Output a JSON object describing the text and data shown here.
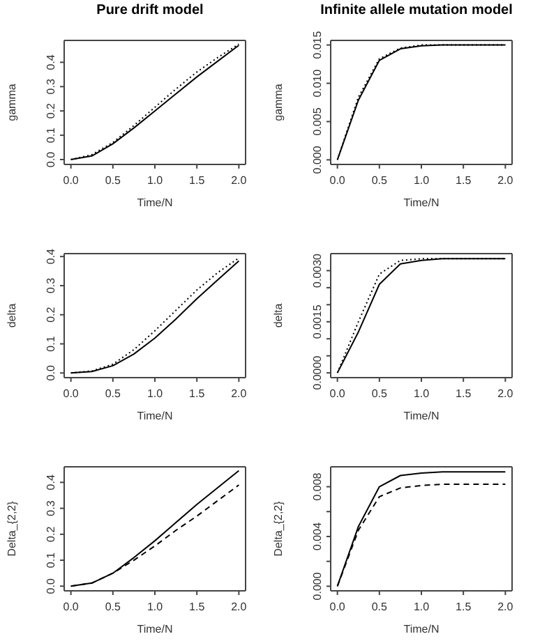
{
  "chart_data": [
    {
      "type": "line",
      "title": "Pure drift model",
      "xlabel": "Time/N",
      "ylabel": "gamma",
      "x": [
        0,
        0.25,
        0.5,
        0.75,
        1,
        1.25,
        1.5,
        1.75,
        2
      ],
      "xlim": [
        -0.08,
        2.08
      ],
      "xticks": [
        {
          "value": 0,
          "label": "0.0"
        },
        {
          "value": 0.5,
          "label": "0.5"
        },
        {
          "value": 1,
          "label": "1.0"
        },
        {
          "value": 1.5,
          "label": "1.5"
        },
        {
          "value": 2,
          "label": "2.0"
        }
      ],
      "ylim": [
        -0.02,
        0.49
      ],
      "yticks": [
        {
          "value": 0,
          "label": "0.0"
        },
        {
          "value": 0.1,
          "label": "0.1"
        },
        {
          "value": 0.2,
          "label": "0.2"
        },
        {
          "value": 0.3,
          "label": "0.3"
        },
        {
          "value": 0.4,
          "label": "0.4"
        }
      ],
      "grid": false,
      "legend": false,
      "marker": "none",
      "series": [
        {
          "color": "#000000",
          "line_style": "solid",
          "values": [
            0,
            0.015,
            0.065,
            0.13,
            0.2,
            0.27,
            0.34,
            0.405,
            0.47
          ]
        },
        {
          "color": "#000000",
          "line_style": "dotted",
          "values": [
            0,
            0.02,
            0.07,
            0.14,
            0.215,
            0.29,
            0.36,
            0.42,
            0.475
          ]
        }
      ]
    },
    {
      "type": "line",
      "title": "Infinite allele mutation model",
      "xlabel": "Time/N",
      "ylabel": "gamma",
      "x": [
        0,
        0.25,
        0.5,
        0.75,
        1,
        1.25,
        1.5,
        1.75,
        2
      ],
      "xlim": [
        -0.08,
        2.08
      ],
      "xticks": [
        {
          "value": 0,
          "label": "0.0"
        },
        {
          "value": 0.5,
          "label": "0.5"
        },
        {
          "value": 1,
          "label": "1.0"
        },
        {
          "value": 1.5,
          "label": "1.5"
        },
        {
          "value": 2,
          "label": "2.0"
        }
      ],
      "ylim": [
        -0.0006,
        0.0156
      ],
      "yticks": [
        {
          "value": 0,
          "label": "0.000"
        },
        {
          "value": 0.005,
          "label": "0.005"
        },
        {
          "value": 0.01,
          "label": "0.010"
        },
        {
          "value": 0.015,
          "label": "0.015"
        }
      ],
      "grid": false,
      "legend": false,
      "marker": "none",
      "series": [
        {
          "color": "#000000",
          "line_style": "solid",
          "values": [
            0,
            0.0078,
            0.013,
            0.0145,
            0.0149,
            0.015,
            0.015,
            0.015,
            0.015
          ]
        },
        {
          "color": "#000000",
          "line_style": "dotted",
          "values": [
            0,
            0.0082,
            0.0132,
            0.0146,
            0.015,
            0.015,
            0.015,
            0.015,
            0.015
          ]
        }
      ]
    },
    {
      "type": "line",
      "xlabel": "Time/N",
      "ylabel": "delta",
      "x": [
        0,
        0.25,
        0.5,
        0.75,
        1,
        1.25,
        1.5,
        1.75,
        2
      ],
      "xlim": [
        -0.08,
        2.08
      ],
      "xticks": [
        {
          "value": 0,
          "label": "0.0"
        },
        {
          "value": 0.5,
          "label": "0.5"
        },
        {
          "value": 1,
          "label": "1.0"
        },
        {
          "value": 1.5,
          "label": "1.5"
        },
        {
          "value": 2,
          "label": "2.0"
        }
      ],
      "ylim": [
        -0.016,
        0.41
      ],
      "yticks": [
        {
          "value": 0,
          "label": "0.0"
        },
        {
          "value": 0.1,
          "label": "0.1"
        },
        {
          "value": 0.2,
          "label": "0.2"
        },
        {
          "value": 0.3,
          "label": "0.3"
        },
        {
          "value": 0.4,
          "label": "0.4"
        }
      ],
      "grid": false,
      "legend": false,
      "marker": "none",
      "series": [
        {
          "color": "#000000",
          "line_style": "solid",
          "values": [
            0,
            0.005,
            0.025,
            0.065,
            0.12,
            0.185,
            0.255,
            0.32,
            0.385
          ]
        },
        {
          "color": "#000000",
          "line_style": "dotted",
          "values": [
            0,
            0.007,
            0.03,
            0.08,
            0.145,
            0.215,
            0.285,
            0.345,
            0.395
          ]
        }
      ]
    },
    {
      "type": "line",
      "xlabel": "Time/N",
      "ylabel": "delta",
      "x": [
        0,
        0.25,
        0.5,
        0.75,
        1,
        1.25,
        1.5,
        1.75,
        2
      ],
      "xlim": [
        -0.08,
        2.08
      ],
      "xticks": [
        {
          "value": 0,
          "label": "0.0"
        },
        {
          "value": 0.5,
          "label": "0.5"
        },
        {
          "value": 1,
          "label": "1.0"
        },
        {
          "value": 1.5,
          "label": "1.5"
        },
        {
          "value": 2,
          "label": "2.0"
        }
      ],
      "ylim": [
        -0.00014,
        0.0035
      ],
      "yticks": [
        {
          "value": 0,
          "label": "0.0000"
        },
        {
          "value": 0.0005,
          "label": null
        },
        {
          "value": 0.001,
          "label": null
        },
        {
          "value": 0.0015,
          "label": "0.0015"
        },
        {
          "value": 0.002,
          "label": null
        },
        {
          "value": 0.0025,
          "label": null
        },
        {
          "value": 0.003,
          "label": "0.0030"
        }
      ],
      "grid": false,
      "legend": false,
      "marker": "none",
      "series": [
        {
          "color": "#000000",
          "line_style": "solid",
          "values": [
            0,
            0.0012,
            0.0026,
            0.0032,
            0.0033,
            0.00335,
            0.00335,
            0.00335,
            0.00335
          ]
        },
        {
          "color": "#000000",
          "line_style": "dotted",
          "values": [
            0,
            0.0015,
            0.0029,
            0.0033,
            0.00335,
            0.00335,
            0.00335,
            0.00335,
            0.00335
          ]
        }
      ]
    },
    {
      "type": "line",
      "xlabel": "Time/N",
      "ylabel": "Delta_{2,2}",
      "x": [
        0,
        0.25,
        0.5,
        0.75,
        1,
        1.25,
        1.5,
        1.75,
        2
      ],
      "xlim": [
        -0.08,
        2.08
      ],
      "xticks": [
        {
          "value": 0,
          "label": "0.0"
        },
        {
          "value": 0.5,
          "label": "0.5"
        },
        {
          "value": 1,
          "label": "1.0"
        },
        {
          "value": 1.5,
          "label": "1.5"
        },
        {
          "value": 2,
          "label": "2.0"
        }
      ],
      "ylim": [
        -0.018,
        0.46
      ],
      "yticks": [
        {
          "value": 0,
          "label": "0.0"
        },
        {
          "value": 0.1,
          "label": "0.1"
        },
        {
          "value": 0.2,
          "label": "0.2"
        },
        {
          "value": 0.3,
          "label": "0.3"
        },
        {
          "value": 0.4,
          "label": "0.4"
        }
      ],
      "grid": false,
      "legend": false,
      "marker": "none",
      "series": [
        {
          "color": "#000000",
          "line_style": "solid",
          "values": [
            0,
            0.012,
            0.05,
            0.11,
            0.175,
            0.245,
            0.315,
            0.38,
            0.445
          ]
        },
        {
          "color": "#000000",
          "line_style": "dashed",
          "values": [
            0,
            0.012,
            0.05,
            0.1,
            0.155,
            0.215,
            0.27,
            0.33,
            0.39
          ]
        }
      ]
    },
    {
      "type": "line",
      "xlabel": "Time/N",
      "ylabel": "Delta_{2,2}",
      "x": [
        0,
        0.25,
        0.5,
        0.75,
        1,
        1.25,
        1.5,
        1.75,
        2
      ],
      "xlim": [
        -0.08,
        2.08
      ],
      "xticks": [
        {
          "value": 0,
          "label": "0.0"
        },
        {
          "value": 0.5,
          "label": "0.5"
        },
        {
          "value": 1,
          "label": "1.0"
        },
        {
          "value": 1.5,
          "label": "1.5"
        },
        {
          "value": 2,
          "label": "2.0"
        }
      ],
      "ylim": [
        -0.00037,
        0.0096
      ],
      "yticks": [
        {
          "value": 0,
          "label": "0.000"
        },
        {
          "value": 0.002,
          "label": null
        },
        {
          "value": 0.004,
          "label": "0.004"
        },
        {
          "value": 0.006,
          "label": null
        },
        {
          "value": 0.008,
          "label": "0.008"
        }
      ],
      "grid": false,
      "legend": false,
      "marker": "none",
      "series": [
        {
          "color": "#000000",
          "line_style": "solid",
          "values": [
            0,
            0.0048,
            0.008,
            0.0089,
            0.0091,
            0.0092,
            0.0092,
            0.0092,
            0.0092
          ]
        },
        {
          "color": "#000000",
          "line_style": "dashed",
          "values": [
            0,
            0.0045,
            0.0072,
            0.0079,
            0.0081,
            0.0082,
            0.0082,
            0.0082,
            0.0082
          ]
        }
      ]
    }
  ]
}
